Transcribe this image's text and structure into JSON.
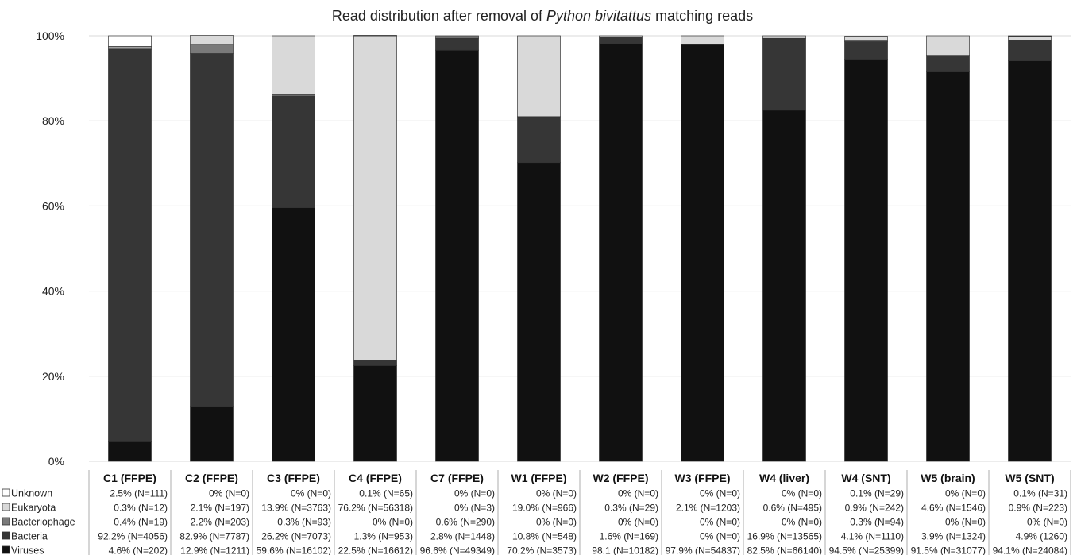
{
  "colors": {
    "Viruses": "#111111",
    "Bacteria": "#363636",
    "Bacteriophage": "#7a7a7a",
    "Eukaryota": "#d9d9d9",
    "Unknown": "#ffffff",
    "grid": "#d9d9d9",
    "text": "#222222"
  },
  "chart_data": {
    "type": "bar",
    "stacked": true,
    "title": {
      "before": "Read distribution after removal of ",
      "italic": "Python bivitattus",
      "after": " matching reads"
    },
    "ylim": [
      0,
      100
    ],
    "yticks": [
      "0%",
      "20%",
      "40%",
      "60%",
      "80%",
      "100%"
    ],
    "grid": true,
    "legend": "left, in data table",
    "categories": [
      "C1 (FFPE)",
      "C2 (FFPE)",
      "C3 (FFPE)",
      "C4 (FFPE)",
      "C7 (FFPE)",
      "W1 (FFPE)",
      "W2 (FFPE)",
      "W3 (FFPE)",
      "W4 (liver)",
      "W4 (SNT)",
      "W5 (brain)",
      "W5 (SNT)"
    ],
    "series": [
      {
        "name": "Viruses",
        "values": [
          4.6,
          12.9,
          59.6,
          22.5,
          96.6,
          70.2,
          98.1,
          97.9,
          82.5,
          94.5,
          91.5,
          94.1
        ],
        "labels": [
          "4.6% (N=202)",
          "12.9% (N=1211)",
          "59.6% (N=16102)",
          "22.5% (N=16612)",
          "96.6% (N=49349)",
          "70.2% (N=3573)",
          "98.1 (N=10182)",
          "97.9% (N=54837)",
          "82.5% (N=66140)",
          "94.5% (N=25399)",
          "91.5% (N=31077)",
          "94.1% (N=24084)"
        ]
      },
      {
        "name": "Bacteria",
        "values": [
          92.2,
          82.9,
          26.2,
          1.3,
          2.8,
          10.8,
          1.6,
          0,
          16.9,
          4.1,
          3.9,
          4.9
        ],
        "labels": [
          "92.2% (N=4056)",
          "82.9% (N=7787)",
          "26.2% (N=7073)",
          "1.3% (N=953)",
          "2.8% (N=1448)",
          "10.8% (N=548)",
          "1.6% (N=169)",
          "0% (N=0)",
          "16.9% (N=13565)",
          "4.1% (N=1110)",
          "3.9% (N=1324)",
          "4.9% (1260)"
        ]
      },
      {
        "name": "Bacteriophage",
        "values": [
          0.4,
          2.2,
          0.3,
          0,
          0.6,
          0,
          0,
          0,
          0,
          0.3,
          0,
          0
        ],
        "labels": [
          "0.4% (N=19)",
          "2.2% (N=203)",
          "0.3% (N=93)",
          "0% (N=0)",
          "0.6% (N=290)",
          "0% (N=0)",
          "0% (N=0)",
          "0% (N=0)",
          "0% (N=0)",
          "0.3% (N=94)",
          "0% (N=0)",
          "0% (N=0)"
        ]
      },
      {
        "name": "Eukaryota",
        "values": [
          0.3,
          2.1,
          13.9,
          76.2,
          0,
          19.0,
          0.3,
          2.1,
          0.6,
          0.9,
          4.6,
          0.9
        ],
        "labels": [
          "0.3% (N=12)",
          "2.1% (N=197)",
          "13.9% (N=3763)",
          "76.2% (N=56318)",
          "0% (N=3)",
          "19.0% (N=966)",
          "0.3% (N=29)",
          "2.1% (N=1203)",
          "0.6% (N=495)",
          "0.9% (N=242)",
          "4.6% (N=1546)",
          "0.9% (N=223)"
        ]
      },
      {
        "name": "Unknown",
        "values": [
          2.5,
          0,
          0,
          0.1,
          0,
          0,
          0,
          0,
          0,
          0.1,
          0,
          0.1
        ],
        "labels": [
          "2.5% (N=111)",
          "0% (N=0)",
          "0% (N=0)",
          "0.1% (N=65)",
          "0% (N=0)",
          "0% (N=0)",
          "0% (N=0)",
          "0% (N=0)",
          "0% (N=0)",
          "0.1% (N=29)",
          "0% (N=0)",
          "0.1% (N=31)"
        ]
      }
    ],
    "table_row_order": [
      "Unknown",
      "Eukaryota",
      "Bacteriophage",
      "Bacteria",
      "Viruses"
    ]
  }
}
